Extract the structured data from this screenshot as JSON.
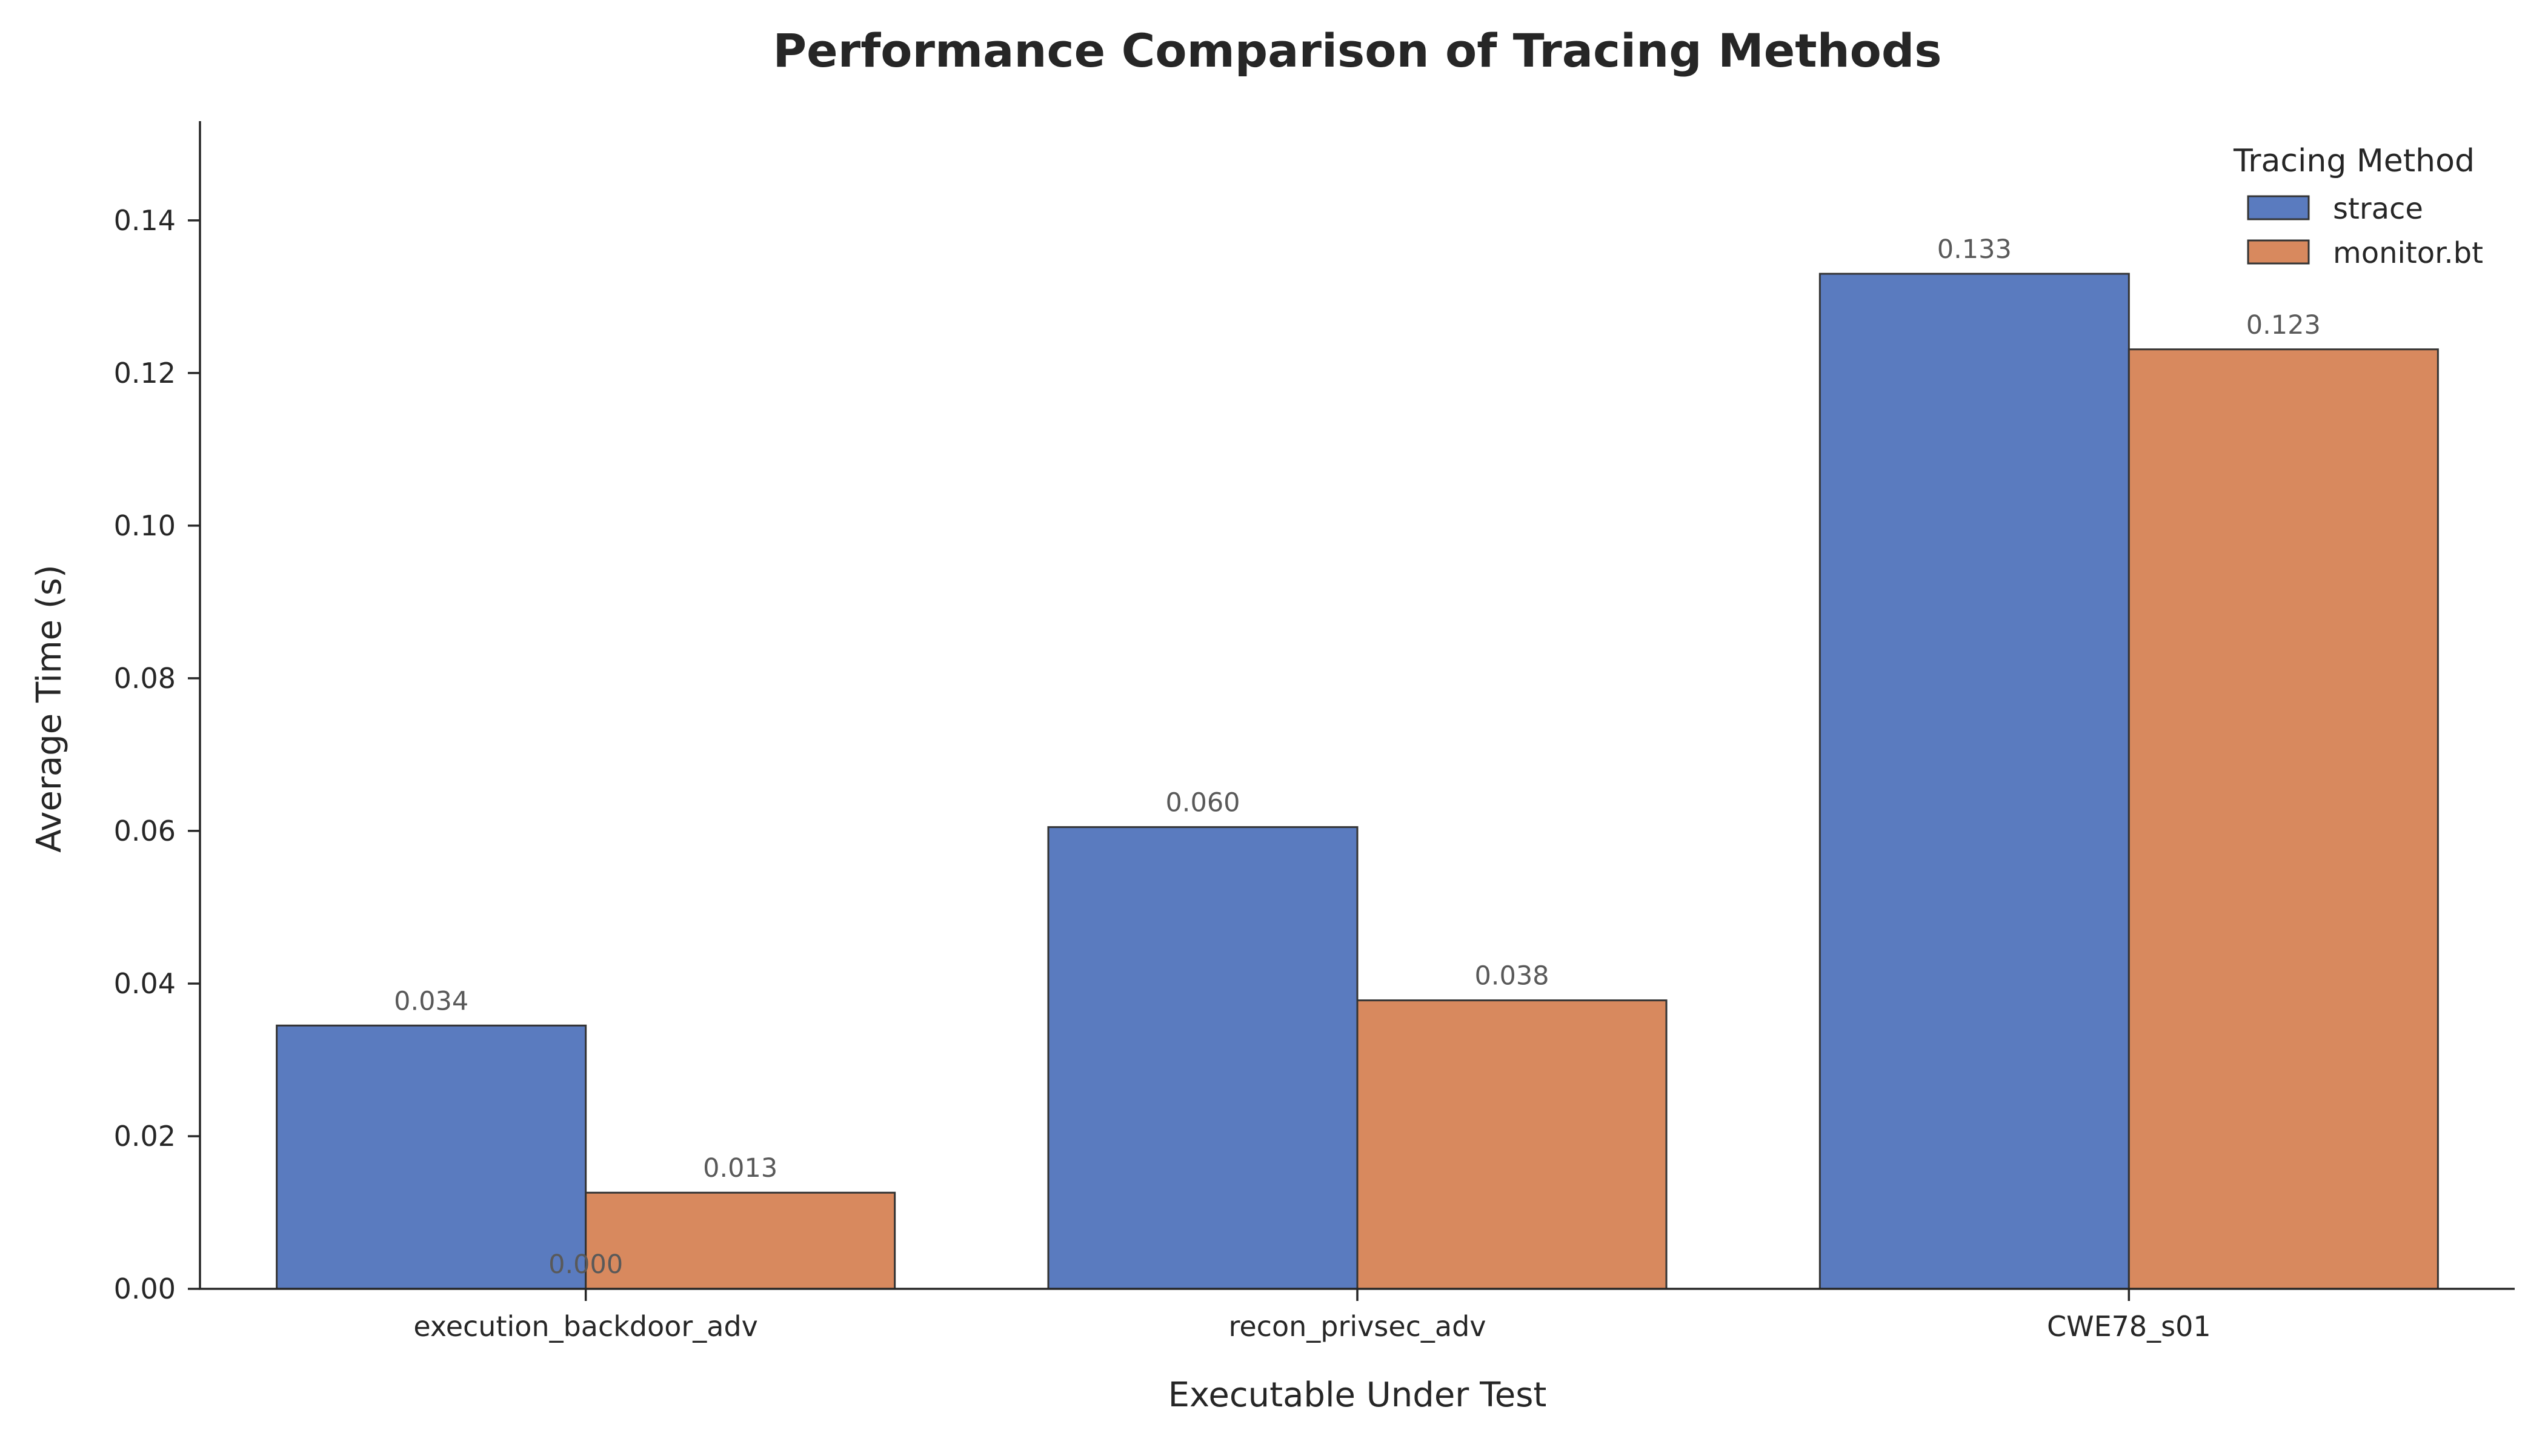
{
  "chart_data": {
    "type": "bar",
    "title": "Performance Comparison of Tracing Methods",
    "xlabel": "Executable Under Test",
    "ylabel": "Average Time (s)",
    "categories": [
      "execution_backdoor_adv",
      "recon_privsec_adv",
      "CWE78_s01"
    ],
    "series": [
      {
        "name": "strace",
        "color": "#5a7bbf",
        "values": [
          0.0345,
          0.0605,
          0.133
        ]
      },
      {
        "name": "monitor.bt",
        "color": "#d8895e",
        "values": [
          0.0126,
          0.0378,
          0.1231
        ]
      }
    ],
    "data_labels": [
      {
        "series": 0,
        "category": 0,
        "text": "0.034"
      },
      {
        "series": 0,
        "category": 1,
        "text": "0.060"
      },
      {
        "series": 0,
        "category": 2,
        "text": "0.133"
      },
      {
        "series": 1,
        "category": 0,
        "text": "0.013"
      },
      {
        "series": 1,
        "category": 1,
        "text": "0.038"
      },
      {
        "series": 1,
        "category": 2,
        "text": "0.123"
      }
    ],
    "extra_annotation": {
      "category": 0,
      "value": 0,
      "text": "0.000"
    },
    "yticks": [
      0.0,
      0.02,
      0.04,
      0.06,
      0.08,
      0.1,
      0.12,
      0.14
    ],
    "ytick_labels": [
      "0.00",
      "0.02",
      "0.04",
      "0.06",
      "0.08",
      "0.10",
      "0.12",
      "0.14"
    ],
    "ylim": [
      0,
      0.153
    ],
    "legend": {
      "title": "Tracing Method",
      "position": "top-right"
    },
    "grid": false,
    "bar_edge_color": "#333333"
  }
}
